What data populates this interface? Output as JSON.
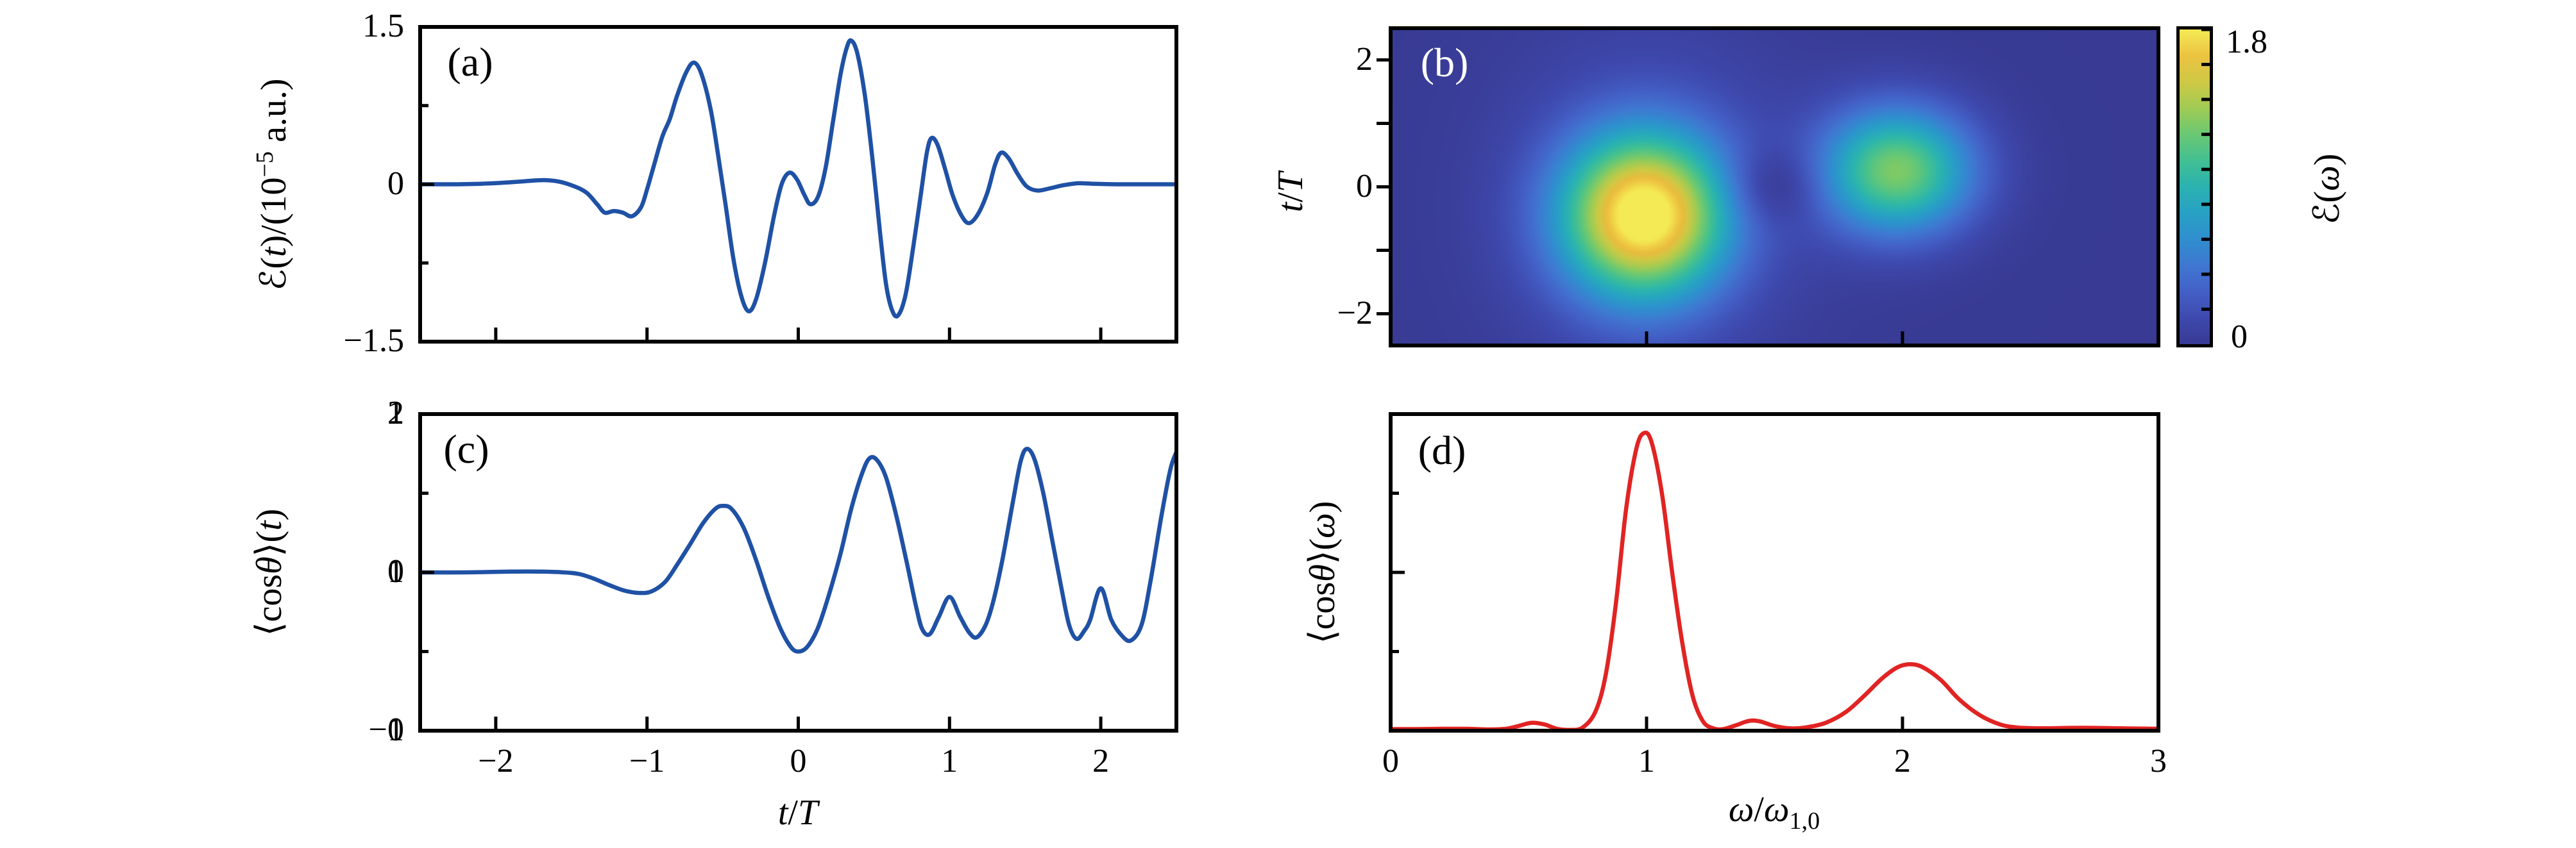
{
  "figure": {
    "background": "#ffffff",
    "frame_color": "#000000"
  },
  "panel_letters": {
    "a": "(a)",
    "b": "(b)",
    "c": "(c)",
    "d": "(d)"
  },
  "labels": {
    "a_ylabel_html": "ℰ(<i>t</i>)/(10<sup>−5</sup> a.u.)",
    "b_ylabel_html": "<i>t</i>/<i>T</i>",
    "c_ylabel_html": "⟨cos<i>θ</i>⟩(<i>t</i>)",
    "d_ylabel_html": "⟨cos<i>θ</i>⟩(<i>ω</i>)",
    "c_xlabel_html": "<i>t</i>/<i>T</i>",
    "d_xlabel_html": "<i>ω</i>/<i>ω</i><sub>1,0</sub>",
    "colorbar_label_html": "ℰ(<i>ω</i>)",
    "colorbar_top": "1.8",
    "colorbar_bottom": "0"
  },
  "colormap": {
    "value_offset": 0.12,
    "value_span": 1.92,
    "stops": [
      [
        0.0,
        "#2d2b7f"
      ],
      [
        0.06,
        "#383a92"
      ],
      [
        0.14,
        "#3e49ae"
      ],
      [
        0.22,
        "#4360c6"
      ],
      [
        0.3,
        "#3f78d1"
      ],
      [
        0.38,
        "#2f8fce"
      ],
      [
        0.46,
        "#27a3c3"
      ],
      [
        0.54,
        "#2bb4ae"
      ],
      [
        0.62,
        "#45c18f"
      ],
      [
        0.7,
        "#71c96e"
      ],
      [
        0.77,
        "#a3cb53"
      ],
      [
        0.84,
        "#cdc944"
      ],
      [
        0.9,
        "#e9bb3d"
      ],
      [
        0.95,
        "#f0ce45"
      ],
      [
        1.0,
        "#f4ea55"
      ]
    ]
  },
  "chart_data": [
    {
      "id": "a",
      "type": "line",
      "line_color": "#1f51a5",
      "xlim": [
        -2.5,
        2.5
      ],
      "ylim": [
        -1.5,
        1.5
      ],
      "xticks": [
        {
          "v": -2
        },
        {
          "v": -1
        },
        {
          "v": 0
        },
        {
          "v": 1
        },
        {
          "v": 2
        }
      ],
      "yticks": [
        {
          "v": 1.5,
          "label": "1.5",
          "mark": false
        },
        {
          "v": 0,
          "label": "0",
          "mark": true
        },
        {
          "v": -1.5,
          "label": "−1.5",
          "mark": false
        }
      ],
      "yminor": [
        0.75,
        -0.75
      ],
      "points": [
        [
          -2.5,
          0
        ],
        [
          -2.3,
          0
        ],
        [
          -2.1,
          0.005
        ],
        [
          -1.95,
          0.015
        ],
        [
          -1.8,
          0.03
        ],
        [
          -1.68,
          0.04
        ],
        [
          -1.58,
          0.025
        ],
        [
          -1.48,
          -0.02
        ],
        [
          -1.4,
          -0.08
        ],
        [
          -1.33,
          -0.19
        ],
        [
          -1.28,
          -0.27
        ],
        [
          -1.22,
          -0.255
        ],
        [
          -1.16,
          -0.27
        ],
        [
          -1.1,
          -0.305
        ],
        [
          -1.04,
          -0.22
        ],
        [
          -1.0,
          -0.05
        ],
        [
          -0.96,
          0.15
        ],
        [
          -0.9,
          0.45
        ],
        [
          -0.85,
          0.62
        ],
        [
          -0.8,
          0.85
        ],
        [
          -0.74,
          1.07
        ],
        [
          -0.69,
          1.16
        ],
        [
          -0.64,
          1.05
        ],
        [
          -0.58,
          0.72
        ],
        [
          -0.53,
          0.28
        ],
        [
          -0.48,
          -0.2
        ],
        [
          -0.43,
          -0.7
        ],
        [
          -0.38,
          -1.05
        ],
        [
          -0.33,
          -1.21
        ],
        [
          -0.28,
          -1.1
        ],
        [
          -0.22,
          -0.75
        ],
        [
          -0.16,
          -0.3
        ],
        [
          -0.11,
          0.0
        ],
        [
          -0.06,
          0.11
        ],
        [
          -0.01,
          0.05
        ],
        [
          0.04,
          -0.1
        ],
        [
          0.08,
          -0.19
        ],
        [
          0.13,
          -0.12
        ],
        [
          0.18,
          0.15
        ],
        [
          0.23,
          0.6
        ],
        [
          0.28,
          1.05
        ],
        [
          0.32,
          1.3
        ],
        [
          0.35,
          1.37
        ],
        [
          0.39,
          1.25
        ],
        [
          0.44,
          0.85
        ],
        [
          0.49,
          0.25
        ],
        [
          0.54,
          -0.45
        ],
        [
          0.58,
          -0.95
        ],
        [
          0.62,
          -1.2
        ],
        [
          0.66,
          -1.25
        ],
        [
          0.71,
          -1.05
        ],
        [
          0.76,
          -0.6
        ],
        [
          0.81,
          -0.1
        ],
        [
          0.85,
          0.3
        ],
        [
          0.88,
          0.44
        ],
        [
          0.92,
          0.38
        ],
        [
          0.97,
          0.15
        ],
        [
          1.02,
          -0.1
        ],
        [
          1.08,
          -0.3
        ],
        [
          1.13,
          -0.37
        ],
        [
          1.19,
          -0.28
        ],
        [
          1.25,
          -0.08
        ],
        [
          1.3,
          0.18
        ],
        [
          1.34,
          0.3
        ],
        [
          1.39,
          0.25
        ],
        [
          1.45,
          0.1
        ],
        [
          1.51,
          -0.02
        ],
        [
          1.58,
          -0.06
        ],
        [
          1.66,
          -0.04
        ],
        [
          1.75,
          -0.01
        ],
        [
          1.85,
          0.01
        ],
        [
          1.95,
          0.005
        ],
        [
          2.1,
          0
        ],
        [
          2.3,
          0
        ],
        [
          2.5,
          0
        ]
      ]
    },
    {
      "id": "b",
      "type": "heatmap",
      "xlim": [
        0,
        3
      ],
      "ylim": [
        -2.5,
        2.5
      ],
      "xticks": [
        {
          "v": 1
        },
        {
          "v": 2
        }
      ],
      "yticks": [
        {
          "v": 2,
          "label": "2",
          "mark": true
        },
        {
          "v": 1,
          "mark": true
        },
        {
          "v": 0,
          "label": "0",
          "mark": true
        },
        {
          "v": -1,
          "mark": true
        },
        {
          "v": -2,
          "label": "−2",
          "mark": true
        }
      ],
      "vmin": 0,
      "vmax": 1.8,
      "blobs": [
        {
          "amp": 1.82,
          "w0": 0.99,
          "t0": -0.45,
          "sw": 0.23,
          "st": 0.92
        },
        {
          "amp": 1.25,
          "w0": 1.98,
          "t0": 0.25,
          "sw": 0.21,
          "st": 0.7
        },
        {
          "amp": -0.25,
          "w0": 1.49,
          "t0": 0.0,
          "sw": 0.13,
          "st": 0.42
        },
        {
          "amp": 0.15,
          "w0": 1.0,
          "t0": -0.2,
          "sw": 0.45,
          "st": 2.2
        }
      ],
      "colorbar_ticks_step": 0.2
    },
    {
      "id": "c",
      "type": "line",
      "line_color": "#1f51a5",
      "xlim": [
        -2.5,
        2.5
      ],
      "ylim": [
        -1,
        1
      ],
      "xticks": [
        {
          "v": -2,
          "label": "−2"
        },
        {
          "v": -1,
          "label": "−1"
        },
        {
          "v": 0,
          "label": "0"
        },
        {
          "v": 1,
          "label": "1"
        },
        {
          "v": 2,
          "label": "2"
        }
      ],
      "yticks": [
        {
          "v": 1,
          "label": "1",
          "mark": false
        },
        {
          "v": 0,
          "label": "0",
          "mark": true
        },
        {
          "v": -1,
          "label": "−1",
          "mark": false
        }
      ],
      "yminor": [
        0.5,
        -0.5
      ],
      "points": [
        [
          -2.5,
          0
        ],
        [
          -2.2,
          0
        ],
        [
          -1.9,
          0.005
        ],
        [
          -1.7,
          0.005
        ],
        [
          -1.55,
          0
        ],
        [
          -1.45,
          -0.01
        ],
        [
          -1.35,
          -0.04
        ],
        [
          -1.25,
          -0.08
        ],
        [
          -1.15,
          -0.115
        ],
        [
          -1.05,
          -0.13
        ],
        [
          -0.97,
          -0.12
        ],
        [
          -0.88,
          -0.06
        ],
        [
          -0.8,
          0.05
        ],
        [
          -0.72,
          0.17
        ],
        [
          -0.63,
          0.31
        ],
        [
          -0.55,
          0.4
        ],
        [
          -0.5,
          0.42
        ],
        [
          -0.44,
          0.4
        ],
        [
          -0.36,
          0.28
        ],
        [
          -0.28,
          0.08
        ],
        [
          -0.2,
          -0.15
        ],
        [
          -0.12,
          -0.35
        ],
        [
          -0.05,
          -0.47
        ],
        [
          0.0,
          -0.5
        ],
        [
          0.06,
          -0.47
        ],
        [
          0.13,
          -0.35
        ],
        [
          0.2,
          -0.15
        ],
        [
          0.28,
          0.12
        ],
        [
          0.35,
          0.4
        ],
        [
          0.42,
          0.62
        ],
        [
          0.47,
          0.72
        ],
        [
          0.52,
          0.71
        ],
        [
          0.58,
          0.6
        ],
        [
          0.65,
          0.35
        ],
        [
          0.72,
          0.05
        ],
        [
          0.78,
          -0.22
        ],
        [
          0.82,
          -0.36
        ],
        [
          0.87,
          -0.39
        ],
        [
          0.93,
          -0.28
        ],
        [
          1.0,
          -0.155
        ],
        [
          1.07,
          -0.28
        ],
        [
          1.13,
          -0.38
        ],
        [
          1.18,
          -0.41
        ],
        [
          1.24,
          -0.33
        ],
        [
          1.29,
          -0.18
        ],
        [
          1.35,
          0.08
        ],
        [
          1.42,
          0.45
        ],
        [
          1.47,
          0.7
        ],
        [
          1.51,
          0.78
        ],
        [
          1.56,
          0.72
        ],
        [
          1.62,
          0.5
        ],
        [
          1.68,
          0.2
        ],
        [
          1.74,
          -0.1
        ],
        [
          1.79,
          -0.33
        ],
        [
          1.84,
          -0.42
        ],
        [
          1.89,
          -0.37
        ],
        [
          1.93,
          -0.3
        ],
        [
          2.0,
          -0.1
        ],
        [
          2.07,
          -0.3
        ],
        [
          2.14,
          -0.4
        ],
        [
          2.2,
          -0.43
        ],
        [
          2.27,
          -0.33
        ],
        [
          2.33,
          -0.05
        ],
        [
          2.4,
          0.35
        ],
        [
          2.46,
          0.65
        ],
        [
          2.5,
          0.76
        ]
      ]
    },
    {
      "id": "d",
      "type": "line",
      "line_color": "#e02423",
      "xlim": [
        0,
        3
      ],
      "ylim": [
        0,
        2
      ],
      "xticks": [
        {
          "v": 0,
          "label": "0",
          "mark": false
        },
        {
          "v": 1,
          "label": "1",
          "mark": true
        },
        {
          "v": 2,
          "label": "2",
          "mark": true
        },
        {
          "v": 3,
          "label": "3",
          "mark": false
        }
      ],
      "yticks": [
        {
          "v": 2,
          "label": "2",
          "mark": false
        },
        {
          "v": 1,
          "label": "1",
          "mark": true
        },
        {
          "v": 0,
          "label": "0",
          "mark": false
        }
      ],
      "yminor": [
        1.5,
        0.5
      ],
      "points": [
        [
          0,
          0.01
        ],
        [
          0.1,
          0.01
        ],
        [
          0.2,
          0.012
        ],
        [
          0.3,
          0.012
        ],
        [
          0.38,
          0.008
        ],
        [
          0.45,
          0.012
        ],
        [
          0.5,
          0.03
        ],
        [
          0.55,
          0.05
        ],
        [
          0.6,
          0.04
        ],
        [
          0.65,
          0.012
        ],
        [
          0.7,
          0.005
        ],
        [
          0.75,
          0.02
        ],
        [
          0.8,
          0.12
        ],
        [
          0.84,
          0.35
        ],
        [
          0.88,
          0.8
        ],
        [
          0.92,
          1.4
        ],
        [
          0.96,
          1.78
        ],
        [
          0.99,
          1.88
        ],
        [
          1.02,
          1.82
        ],
        [
          1.06,
          1.5
        ],
        [
          1.1,
          1.0
        ],
        [
          1.14,
          0.55
        ],
        [
          1.18,
          0.22
        ],
        [
          1.22,
          0.06
        ],
        [
          1.26,
          0.015
        ],
        [
          1.3,
          0.01
        ],
        [
          1.35,
          0.035
        ],
        [
          1.4,
          0.062
        ],
        [
          1.44,
          0.06
        ],
        [
          1.5,
          0.03
        ],
        [
          1.56,
          0.015
        ],
        [
          1.62,
          0.02
        ],
        [
          1.7,
          0.05
        ],
        [
          1.78,
          0.12
        ],
        [
          1.85,
          0.22
        ],
        [
          1.92,
          0.33
        ],
        [
          1.98,
          0.4
        ],
        [
          2.03,
          0.42
        ],
        [
          2.08,
          0.4
        ],
        [
          2.15,
          0.32
        ],
        [
          2.22,
          0.2
        ],
        [
          2.3,
          0.1
        ],
        [
          2.38,
          0.04
        ],
        [
          2.45,
          0.02
        ],
        [
          2.55,
          0.015
        ],
        [
          2.65,
          0.018
        ],
        [
          2.75,
          0.018
        ],
        [
          2.85,
          0.015
        ],
        [
          2.95,
          0.013
        ],
        [
          3.0,
          0.013
        ]
      ]
    }
  ]
}
